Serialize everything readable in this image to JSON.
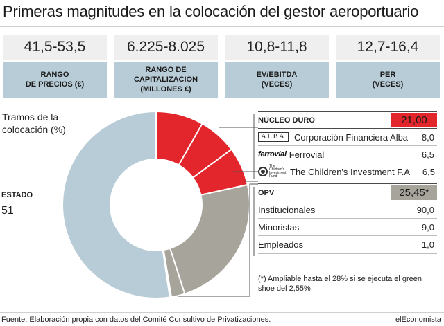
{
  "title": "Primeras magnitudes en la colocación del gestor aeroportuario",
  "stats": [
    {
      "value": "41,5-53,5",
      "label": "RANGO\nDE PRECIOS (€)"
    },
    {
      "value": "6.225-8.025",
      "label": "RANGO DE\nCAPITALIZACIÓN\n(MILLONES €)"
    },
    {
      "value": "10,8-11,8",
      "label": "EV/EBITDA\n(VECES)"
    },
    {
      "value": "12,7-16,4",
      "label": "PER\n(VECES)"
    }
  ],
  "tramos_label": "Tramos de la colocación (%)",
  "estado": {
    "label": "ESTADO",
    "value": "51"
  },
  "nucleo": {
    "label": "NÚCLEO DURO",
    "total": "21,00",
    "items": [
      {
        "name": "Corporación Financiera Alba",
        "value": "8,0",
        "logo": "alba-logo"
      },
      {
        "name": "Ferrovial",
        "value": "6,5",
        "logo": "ferrovial-logo"
      },
      {
        "name": "The Children's Investment F.A",
        "value": "6,5",
        "logo": "tci-logo"
      }
    ]
  },
  "opv": {
    "label": "OPV",
    "total": "25,45*",
    "items": [
      {
        "name": "Institucionales",
        "value": "90,0"
      },
      {
        "name": "Minoristas",
        "value": "9,0"
      },
      {
        "name": "Empleados",
        "value": "1,0"
      }
    ]
  },
  "logos": {
    "alba": "ALBA",
    "ferrovial": "ferrovial",
    "tci": "The Children's Investment Fund"
  },
  "footnote": "(*) Ampliable hasta el 28% si se ejecuta el green shoe del 2,55%",
  "source": "Fuente: Elaboración propia con datos del Comité Consultivo de Privatizaciones.",
  "brand": "elEconomista",
  "colors": {
    "estado": "#b8ccd7",
    "nucleo": "#e3262b",
    "opv": "#a7a49c",
    "opv_header": "#a7a49c"
  },
  "chart_data": {
    "type": "pie",
    "subtype": "donut",
    "title": "Tramos de la colocación (%)",
    "slices": [
      {
        "name": "ESTADO",
        "value": 51,
        "color": "#b8ccd7"
      },
      {
        "name": "Corporación Financiera Alba",
        "value": 8.0,
        "color": "#e3262b"
      },
      {
        "name": "Ferrovial",
        "value": 6.5,
        "color": "#e3262b"
      },
      {
        "name": "The Children's Investment F.A",
        "value": 6.5,
        "color": "#e3262b"
      },
      {
        "name": "Institucionales",
        "value": 22.9,
        "color": "#a7a49c"
      },
      {
        "name": "Minoristas",
        "value": 2.29,
        "color": "#a7a49c"
      },
      {
        "name": "Empleados",
        "value": 0.25,
        "color": "#a7a49c"
      }
    ]
  }
}
